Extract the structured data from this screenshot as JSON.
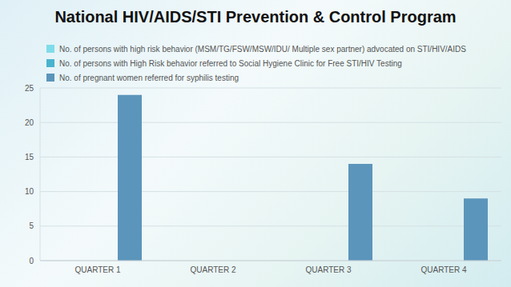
{
  "chart_data": {
    "type": "bar",
    "title": "National HIV/AIDS/STI Prevention & Control Program",
    "categories": [
      "QUARTER 1",
      "QUARTER 2",
      "QUARTER 3",
      "QUARTER 4"
    ],
    "series": [
      {
        "name": "No. of persons with high risk behavior (MSM/TG/FSW/MSW/IDU/ Multiple sex partner) advocated on STI/HIV/AIDS",
        "color": "#7fdcea",
        "values": [
          0,
          0,
          0,
          0
        ]
      },
      {
        "name": "No. of persons with High Risk behavior referred to Social Hygiene Clinic for Free STI/HIV Testing",
        "color": "#4ab3cf",
        "values": [
          0,
          0,
          0,
          0
        ]
      },
      {
        "name": "No. of pregnant women referred for syphilis testing",
        "color": "#5b95bb",
        "values": [
          24,
          0,
          14,
          9
        ]
      }
    ],
    "ylim": [
      0,
      25
    ],
    "yticks": [
      0,
      5,
      10,
      15,
      20,
      25
    ],
    "grid": true,
    "legend": "top-left"
  }
}
